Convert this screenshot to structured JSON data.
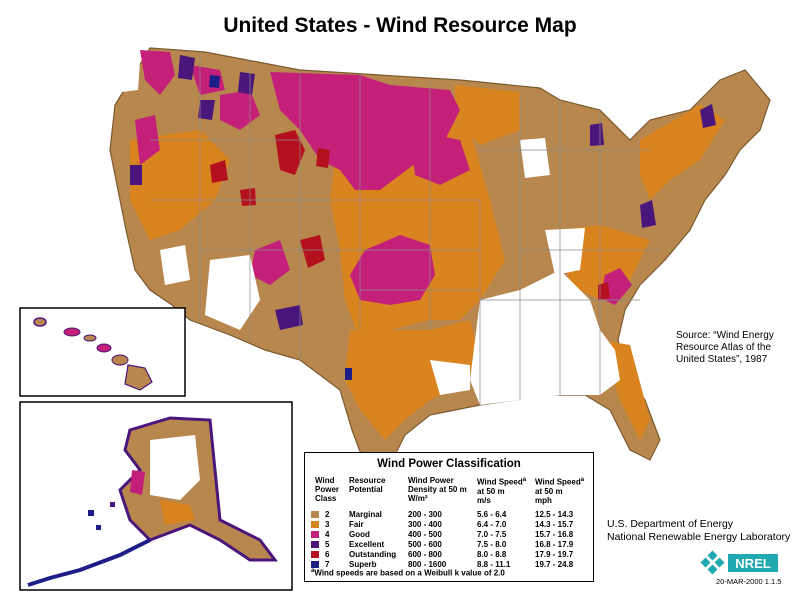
{
  "title": "United States - Wind Resource Map",
  "colors": {
    "class2": "#b8874e",
    "class3": "#d9841f",
    "class4": "#c4207a",
    "class5": "#4b167c",
    "class6": "#b4101e",
    "class7": "#1c1d86",
    "state_line": "#8a8a8a",
    "logo": "#1fa9b0"
  },
  "source": {
    "line1": "Source:  “Wind Energy",
    "line2": "Resource Atlas of the",
    "line3": "United States”, 1987"
  },
  "agency": {
    "line1": "U.S. Department of Energy",
    "line2": "National Renewable Energy Laboratory"
  },
  "logo_text": "NREL",
  "version": "20-MAR-2000 1.1.5",
  "legend": {
    "title": "Wind Power Classification",
    "headers": {
      "class": [
        "Wind",
        "Power",
        "Class"
      ],
      "potential": [
        "Resource",
        "Potential"
      ],
      "density": [
        "Wind Power",
        "Density at 50 m",
        "W/m²"
      ],
      "speed_ms": [
        "Wind Speed",
        "at 50 m",
        "m/s"
      ],
      "speed_mph": [
        "Wind Speed",
        "at 50 m",
        "mph"
      ]
    },
    "superscript": "a",
    "rows": [
      {
        "cls": "2",
        "potential": "Marginal",
        "density": "200 - 300",
        "ms": "5.6 - 6.4",
        "mph": "12.5 - 14.3",
        "color": "#b8874e"
      },
      {
        "cls": "3",
        "potential": "Fair",
        "density": "300 - 400",
        "ms": "6.4 - 7.0",
        "mph": "14.3 - 15.7",
        "color": "#d9841f"
      },
      {
        "cls": "4",
        "potential": "Good",
        "density": "400 - 500",
        "ms": "7.0 - 7.5",
        "mph": "15.7 - 16.8",
        "color": "#c4207a"
      },
      {
        "cls": "5",
        "potential": "Excellent",
        "density": "500 - 600",
        "ms": "7.5 - 8.0",
        "mph": "16.8 - 17.9",
        "color": "#4b167c"
      },
      {
        "cls": "6",
        "potential": "Outstanding",
        "density": "600 - 800",
        "ms": "8.0 - 8.8",
        "mph": "17.9 - 19.7",
        "color": "#b4101e"
      },
      {
        "cls": "7",
        "potential": "Superb",
        "density": "800 - 1600",
        "ms": "8.8 - 11.1",
        "mph": "19.7 - 24.8",
        "color": "#1c1d86"
      }
    ],
    "footnote": "Wind speeds are based on a Weibull k value of 2.0"
  }
}
